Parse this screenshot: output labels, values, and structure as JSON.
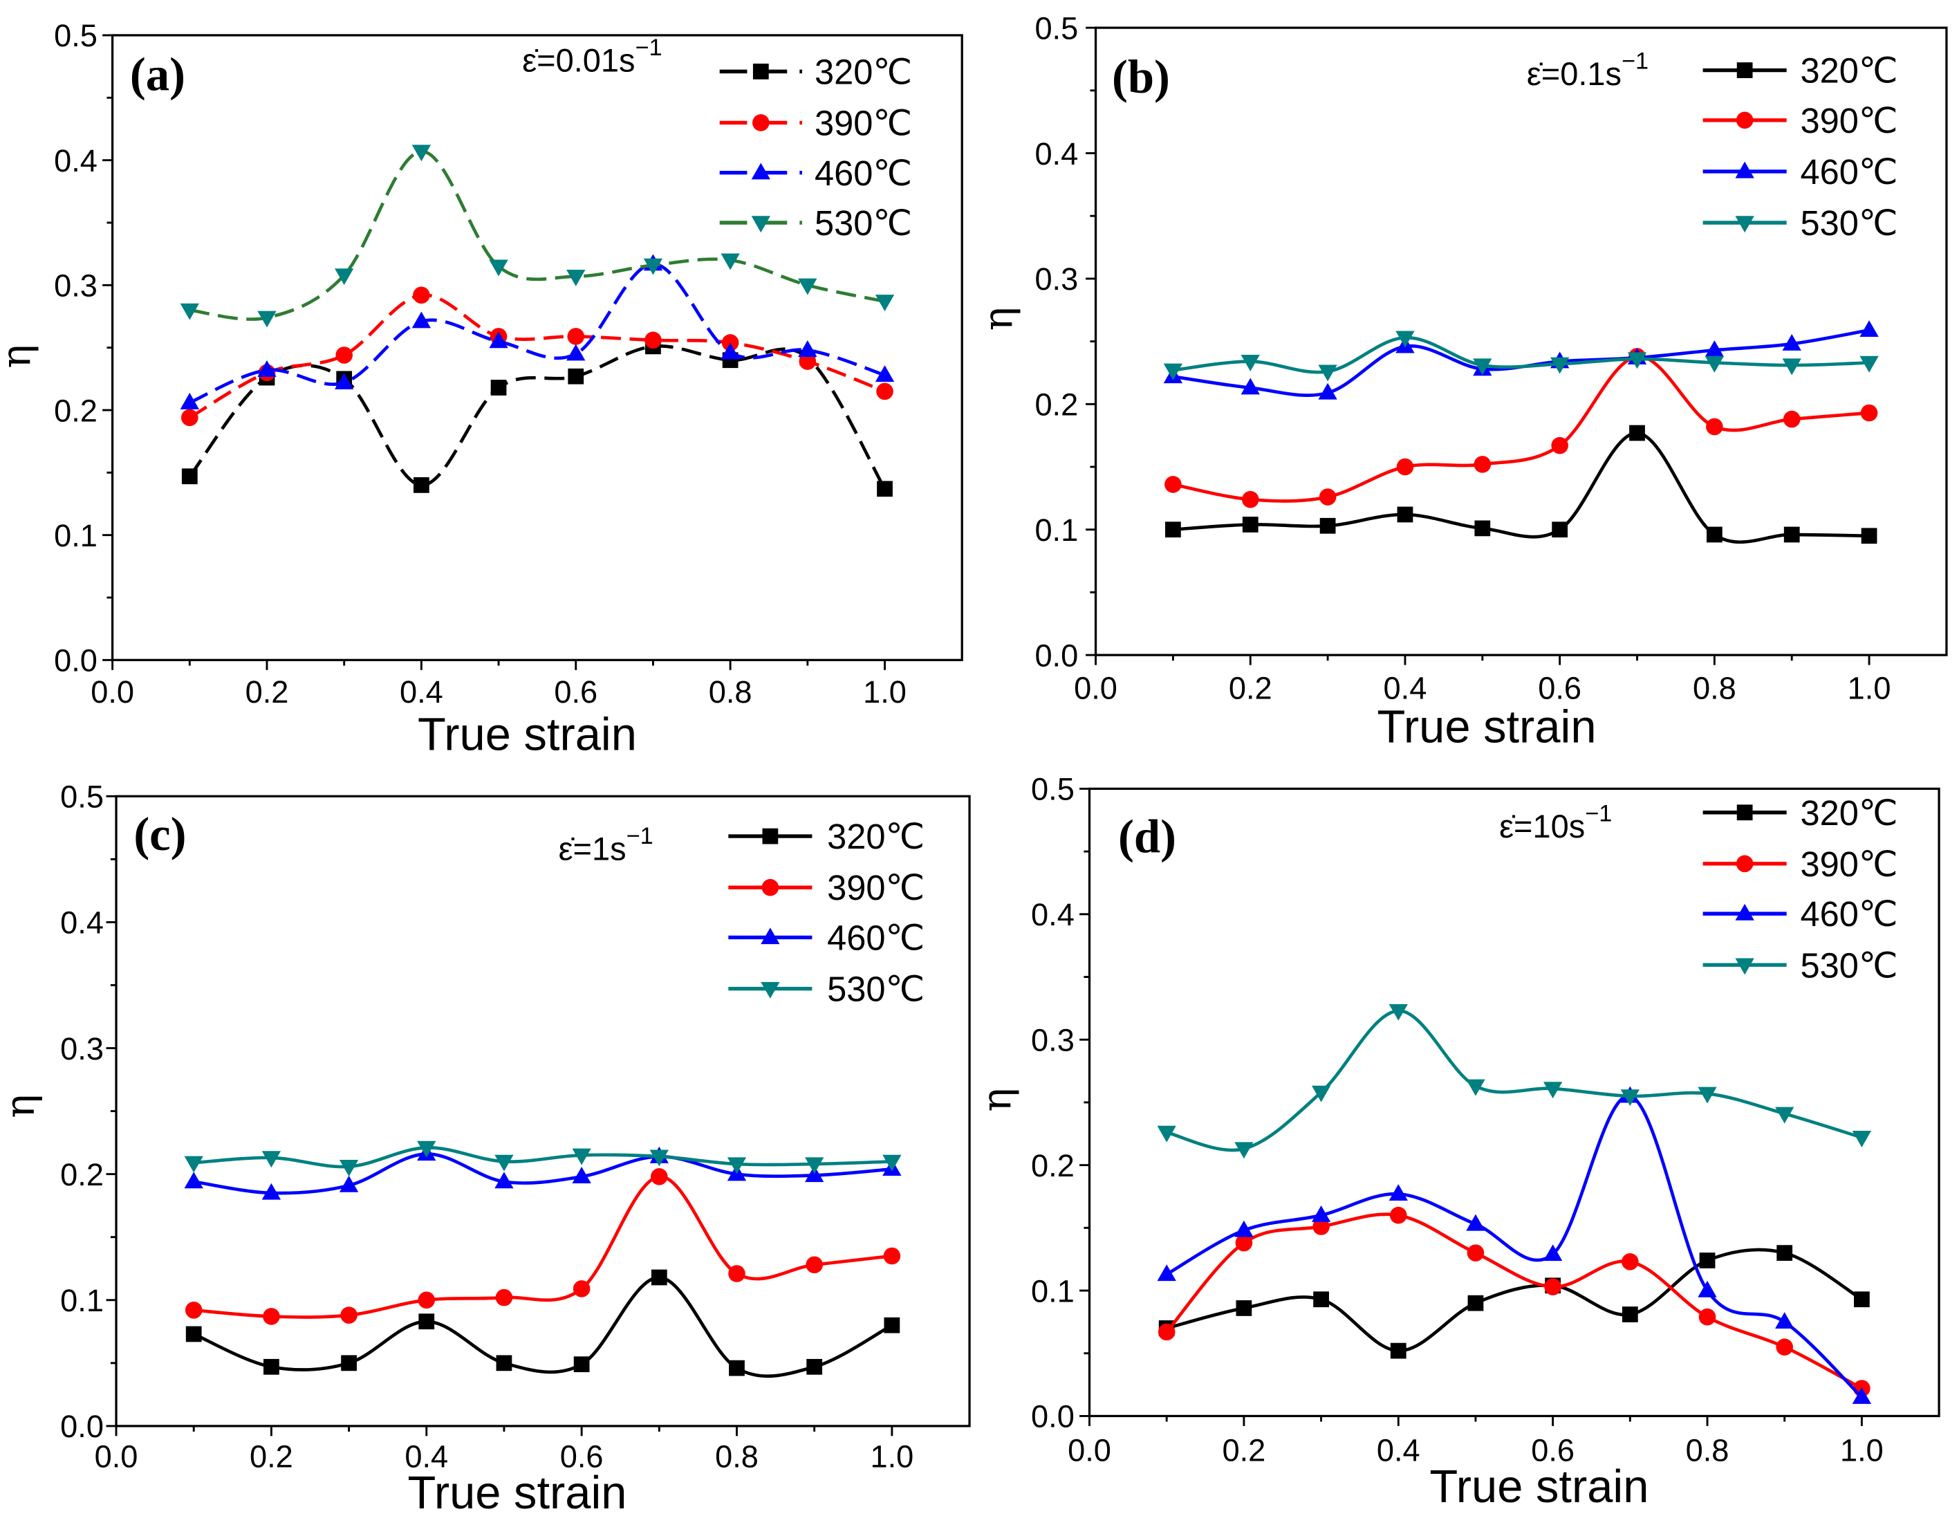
{
  "chart_data": [
    {
      "type": "line",
      "panel_label": "(a)",
      "rate_base": "ε̇=0.01s",
      "rate_exp": "−1",
      "xlabel": "True strain",
      "ylabel": "η",
      "xlim": [
        0,
        1.1
      ],
      "ylim": [
        0,
        0.5
      ],
      "xticks": [
        "0.0",
        "0.2",
        "0.4",
        "0.6",
        "0.8",
        "1.0"
      ],
      "yticks": [
        "0.0",
        "0.1",
        "0.2",
        "0.3",
        "0.4",
        "0.5"
      ],
      "line_style": "dashed",
      "legend_position": "top-right",
      "x": [
        0.1,
        0.2,
        0.3,
        0.4,
        0.5,
        0.6,
        0.7,
        0.8,
        0.9,
        1.0
      ],
      "series": [
        {
          "name": "320℃",
          "color": "#000000",
          "line_color": "#000000",
          "marker": "square",
          "values": [
            0.147,
            0.226,
            0.225,
            0.14,
            0.218,
            0.227,
            0.251,
            0.24,
            0.242,
            0.137
          ]
        },
        {
          "name": "390℃",
          "color": "#FF0000",
          "line_color": "#FF0000",
          "marker": "circle",
          "values": [
            0.194,
            0.23,
            0.244,
            0.292,
            0.259,
            0.259,
            0.256,
            0.254,
            0.239,
            0.215
          ]
        },
        {
          "name": "460℃",
          "color": "#0000FF",
          "line_color": "#0000FF",
          "marker": "triangle-up",
          "values": [
            0.206,
            0.232,
            0.222,
            0.271,
            0.255,
            0.245,
            0.317,
            0.246,
            0.248,
            0.228
          ]
        },
        {
          "name": "530℃",
          "color": "#008080",
          "line_color": "#2E7D32",
          "marker": "triangle-down",
          "values": [
            0.28,
            0.274,
            0.308,
            0.407,
            0.315,
            0.307,
            0.316,
            0.32,
            0.3,
            0.287
          ]
        }
      ]
    },
    {
      "type": "line",
      "panel_label": "(b)",
      "rate_base": "ε̇=0.1s",
      "rate_exp": "−1",
      "xlabel": "True strain",
      "ylabel": "η",
      "xlim": [
        0,
        1.1
      ],
      "ylim": [
        0,
        0.5
      ],
      "xticks": [
        "0.0",
        "0.2",
        "0.4",
        "0.6",
        "0.8",
        "1.0"
      ],
      "yticks": [
        "0.0",
        "0.1",
        "0.2",
        "0.3",
        "0.4",
        "0.5"
      ],
      "line_style": "solid",
      "legend_position": "top-right",
      "x": [
        0.1,
        0.2,
        0.3,
        0.4,
        0.5,
        0.6,
        0.7,
        0.8,
        0.9,
        1.0
      ],
      "series": [
        {
          "name": "320℃",
          "color": "#000000",
          "line_color": "#000000",
          "marker": "square",
          "values": [
            0.1,
            0.104,
            0.103,
            0.112,
            0.101,
            0.1,
            0.177,
            0.096,
            0.096,
            0.095
          ]
        },
        {
          "name": "390℃",
          "color": "#FF0000",
          "line_color": "#FF0000",
          "marker": "circle",
          "values": [
            0.136,
            0.124,
            0.126,
            0.15,
            0.152,
            0.167,
            0.238,
            0.182,
            0.188,
            0.193
          ]
        },
        {
          "name": "460℃",
          "color": "#0000FF",
          "line_color": "#0000FF",
          "marker": "triangle-up",
          "values": [
            0.222,
            0.213,
            0.209,
            0.246,
            0.228,
            0.234,
            0.237,
            0.243,
            0.248,
            0.259
          ]
        },
        {
          "name": "530℃",
          "color": "#008080",
          "line_color": "#008080",
          "marker": "triangle-down",
          "values": [
            0.227,
            0.234,
            0.226,
            0.253,
            0.231,
            0.232,
            0.236,
            0.233,
            0.231,
            0.233
          ]
        }
      ]
    },
    {
      "type": "line",
      "panel_label": "(c)",
      "rate_base": "ε̇=1s",
      "rate_exp": "−1",
      "xlabel": "True strain",
      "ylabel": "η",
      "xlim": [
        0,
        1.1
      ],
      "ylim": [
        0,
        0.5
      ],
      "xticks": [
        "0.0",
        "0.2",
        "0.4",
        "0.6",
        "0.8",
        "1.0"
      ],
      "yticks": [
        "0.0",
        "0.1",
        "0.2",
        "0.3",
        "0.4",
        "0.5"
      ],
      "line_style": "solid",
      "legend_position": "top-right",
      "x": [
        0.1,
        0.2,
        0.3,
        0.4,
        0.5,
        0.6,
        0.7,
        0.8,
        0.9,
        1.0
      ],
      "series": [
        {
          "name": "320℃",
          "color": "#000000",
          "line_color": "#000000",
          "marker": "square",
          "values": [
            0.073,
            0.047,
            0.05,
            0.083,
            0.05,
            0.049,
            0.118,
            0.046,
            0.047,
            0.08
          ]
        },
        {
          "name": "390℃",
          "color": "#FF0000",
          "line_color": "#FF0000",
          "marker": "circle",
          "values": [
            0.092,
            0.087,
            0.088,
            0.1,
            0.102,
            0.109,
            0.198,
            0.121,
            0.128,
            0.135
          ]
        },
        {
          "name": "460℃",
          "color": "#0000FF",
          "line_color": "#0000FF",
          "marker": "triangle-up",
          "values": [
            0.194,
            0.185,
            0.191,
            0.216,
            0.194,
            0.198,
            0.214,
            0.2,
            0.199,
            0.204
          ]
        },
        {
          "name": "530℃",
          "color": "#008080",
          "line_color": "#008080",
          "marker": "triangle-down",
          "values": [
            0.209,
            0.213,
            0.206,
            0.221,
            0.21,
            0.215,
            0.214,
            0.208,
            0.208,
            0.21
          ]
        }
      ]
    },
    {
      "type": "line",
      "panel_label": "(d)",
      "rate_base": "ε̇=10s",
      "rate_exp": "−1",
      "xlabel": "True strain",
      "ylabel": "η",
      "xlim": [
        0,
        1.1
      ],
      "ylim": [
        0,
        0.5
      ],
      "xticks": [
        "0.0",
        "0.2",
        "0.4",
        "0.6",
        "0.8",
        "1.0"
      ],
      "yticks": [
        "0.0",
        "0.1",
        "0.2",
        "0.3",
        "0.4",
        "0.5"
      ],
      "line_style": "solid",
      "legend_position": "top-right",
      "x": [
        0.1,
        0.2,
        0.3,
        0.4,
        0.5,
        0.6,
        0.7,
        0.8,
        0.9,
        1.0
      ],
      "series": [
        {
          "name": "320℃",
          "color": "#000000",
          "line_color": "#000000",
          "marker": "square",
          "values": [
            0.07,
            0.086,
            0.093,
            0.052,
            0.09,
            0.104,
            0.081,
            0.124,
            0.13,
            0.093
          ]
        },
        {
          "name": "390℃",
          "color": "#FF0000",
          "line_color": "#FF0000",
          "marker": "circle",
          "values": [
            0.067,
            0.138,
            0.151,
            0.16,
            0.13,
            0.103,
            0.123,
            0.079,
            0.055,
            0.022
          ]
        },
        {
          "name": "460℃",
          "color": "#0000FF",
          "line_color": "#0000FF",
          "marker": "triangle-up",
          "values": [
            0.113,
            0.148,
            0.16,
            0.177,
            0.153,
            0.129,
            0.255,
            0.1,
            0.075,
            0.015
          ]
        },
        {
          "name": "530℃",
          "color": "#008080",
          "line_color": "#008080",
          "marker": "triangle-down",
          "values": [
            0.226,
            0.213,
            0.258,
            0.323,
            0.263,
            0.261,
            0.255,
            0.257,
            0.241,
            0.222
          ]
        }
      ]
    }
  ]
}
